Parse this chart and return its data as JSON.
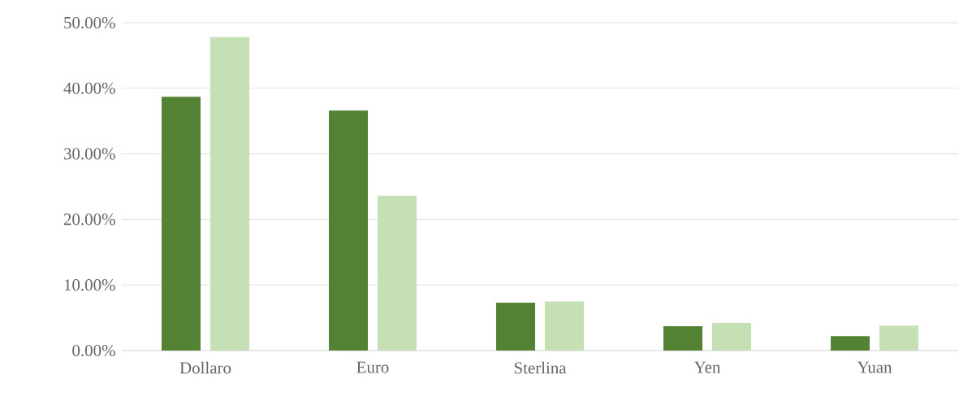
{
  "chart_data": {
    "type": "bar",
    "categories": [
      "Dollaro",
      "Euro",
      "Sterlina",
      "Yen",
      "Yuan"
    ],
    "series": [
      {
        "color": "#548235",
        "values": [
          38.7,
          36.6,
          7.3,
          3.7,
          2.2
        ]
      },
      {
        "color": "#c5e0b4",
        "values": [
          47.8,
          23.6,
          7.5,
          4.2,
          3.8
        ]
      }
    ],
    "ylim": [
      0,
      50
    ],
    "yticks": [
      {
        "value": 0,
        "label": "0.00%"
      },
      {
        "value": 10,
        "label": "10.00%"
      },
      {
        "value": 20,
        "label": "20.00%"
      },
      {
        "value": 30,
        "label": "30.00%"
      },
      {
        "value": 40,
        "label": "40.00%"
      },
      {
        "value": 50,
        "label": "50.00%"
      }
    ],
    "grid": "y"
  }
}
